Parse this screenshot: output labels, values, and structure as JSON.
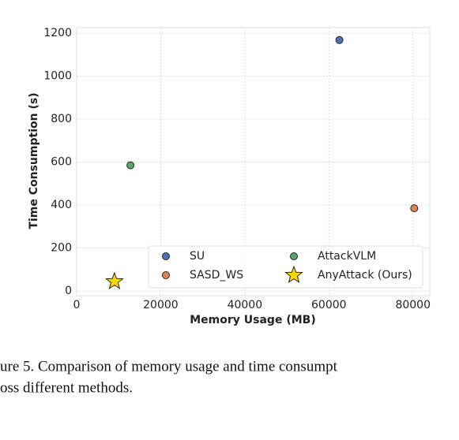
{
  "chart_data": {
    "type": "scatter",
    "xlabel": "Memory Usage (MB)",
    "ylabel": "Time Consumption (s)",
    "xlim": [
      0,
      84000
    ],
    "ylim": [
      -22,
      1226
    ],
    "xticks": [
      0,
      20000,
      40000,
      60000,
      80000
    ],
    "yticks": [
      0,
      200,
      400,
      600,
      800,
      1000,
      1200
    ],
    "grid": true,
    "legend_position": "lower-right",
    "legend_columns": 2,
    "series": [
      {
        "name": "SU",
        "color": "#4c72b0",
        "marker": "circle",
        "x": [
          62500
        ],
        "values": [
          1168
        ]
      },
      {
        "name": "SASD_WS",
        "color": "#dd8452",
        "marker": "circle",
        "x": [
          80300
        ],
        "values": [
          385
        ]
      },
      {
        "name": "AttackVLM",
        "color": "#55a868",
        "marker": "circle",
        "x": [
          12800
        ],
        "values": [
          585
        ]
      },
      {
        "name": "AnyAttack (Ours)",
        "color": "#ffd700",
        "marker": "star",
        "x": [
          9000
        ],
        "values": [
          44
        ]
      }
    ]
  },
  "caption": {
    "lines": [
      "ure 5.  Comparison of memory usage and time consumpt",
      "oss different methods."
    ]
  }
}
